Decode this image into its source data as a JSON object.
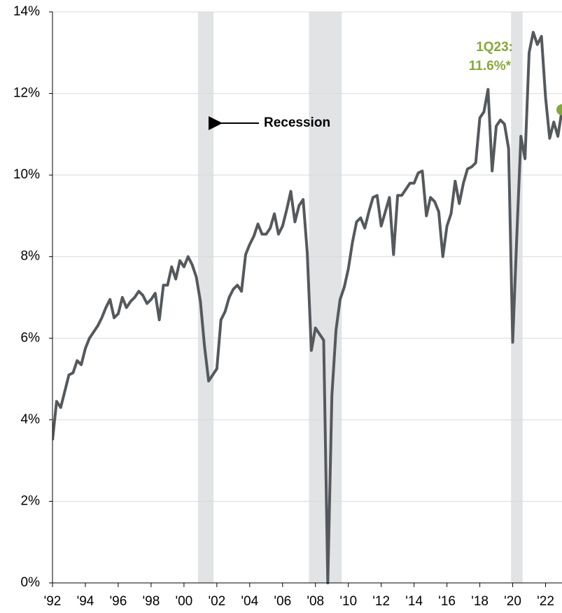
{
  "chart_data": {
    "type": "line",
    "x": [
      1992,
      1992.25,
      1992.5,
      1992.75,
      1993,
      1993.25,
      1993.5,
      1993.75,
      1994,
      1994.25,
      1994.5,
      1994.75,
      1995,
      1995.25,
      1995.5,
      1995.75,
      1996,
      1996.25,
      1996.5,
      1996.75,
      1997,
      1997.25,
      1997.5,
      1997.75,
      1998,
      1998.25,
      1998.5,
      1998.75,
      1999,
      1999.25,
      1999.5,
      1999.75,
      2000,
      2000.25,
      2000.5,
      2000.75,
      2001,
      2001.25,
      2001.5,
      2001.75,
      2002,
      2002.25,
      2002.5,
      2002.75,
      2003,
      2003.25,
      2003.5,
      2003.75,
      2004,
      2004.25,
      2004.5,
      2004.75,
      2005,
      2005.25,
      2005.5,
      2005.75,
      2006,
      2006.25,
      2006.5,
      2006.75,
      2007,
      2007.25,
      2007.5,
      2007.75,
      2008,
      2008.25,
      2008.5,
      2008.75,
      2009,
      2009.25,
      2009.5,
      2009.75,
      2010,
      2010.25,
      2010.5,
      2010.75,
      2011,
      2011.25,
      2011.5,
      2011.75,
      2012,
      2012.25,
      2012.5,
      2012.75,
      2013,
      2013.25,
      2013.5,
      2013.75,
      2014,
      2014.25,
      2014.5,
      2014.75,
      2015,
      2015.25,
      2015.5,
      2015.75,
      2016,
      2016.25,
      2016.5,
      2016.75,
      2017,
      2017.25,
      2017.5,
      2017.75,
      2018,
      2018.25,
      2018.5,
      2018.75,
      2019,
      2019.25,
      2019.5,
      2019.75,
      2020,
      2020.25,
      2020.5,
      2020.75,
      2021,
      2021.25,
      2021.5,
      2021.75,
      2022,
      2022.25,
      2022.5,
      2022.75,
      2023
    ],
    "series": [
      {
        "color": "#55595d",
        "values": [
          3.5,
          4.45,
          4.3,
          4.7,
          5.1,
          5.15,
          5.45,
          5.35,
          5.75,
          6.0,
          6.15,
          6.3,
          6.5,
          6.75,
          6.95,
          6.5,
          6.6,
          7.0,
          6.75,
          6.9,
          7.0,
          7.15,
          7.05,
          6.85,
          6.95,
          7.1,
          6.45,
          7.3,
          7.3,
          7.75,
          7.45,
          7.9,
          7.75,
          8.0,
          7.8,
          7.5,
          6.9,
          5.8,
          4.95,
          5.1,
          5.25,
          6.45,
          6.65,
          7.0,
          7.2,
          7.3,
          7.15,
          8.05,
          8.3,
          8.5,
          8.8,
          8.55,
          8.55,
          8.7,
          9.05,
          8.55,
          8.75,
          9.15,
          9.6,
          8.85,
          9.25,
          9.4,
          8.1,
          5.7,
          6.25,
          6.1,
          5.95,
          0.0,
          4.6,
          6.2,
          6.95,
          7.25,
          7.7,
          8.35,
          8.85,
          8.95,
          8.7,
          9.1,
          9.45,
          9.5,
          8.75,
          9.1,
          9.45,
          8.05,
          9.5,
          9.5,
          9.65,
          9.8,
          9.8,
          10.05,
          10.1,
          9.0,
          9.45,
          9.35,
          9.1,
          8.0,
          8.75,
          9.05,
          9.85,
          9.3,
          9.8,
          10.15,
          10.2,
          10.3,
          11.4,
          11.55,
          12.1,
          10.1,
          11.2,
          11.35,
          11.25,
          10.65,
          5.9,
          8.5,
          10.95,
          10.4,
          13.0,
          13.5,
          13.2,
          13.4,
          11.9,
          10.9,
          11.3,
          10.95,
          11.6
        ]
      }
    ],
    "highlight_color": "#85a83a",
    "last_label": [
      "1Q23:",
      "11.6%*"
    ],
    "recessions": [
      [
        2000.85,
        2001.8
      ],
      [
        2007.6,
        2009.6
      ],
      [
        2019.9,
        2020.6
      ]
    ],
    "recession_color": "#e2e3e5",
    "recession_label": "Recession",
    "xlim": [
      1992,
      2023
    ],
    "xticks": [
      {
        "value": 1992,
        "label": "'92"
      },
      {
        "value": 1994,
        "label": "'94"
      },
      {
        "value": 1996,
        "label": "'96"
      },
      {
        "value": 1998,
        "label": "'98"
      },
      {
        "value": 2000,
        "label": "'00"
      },
      {
        "value": 2002,
        "label": "'02"
      },
      {
        "value": 2004,
        "label": "'04"
      },
      {
        "value": 2006,
        "label": "'06"
      },
      {
        "value": 2008,
        "label": "'08"
      },
      {
        "value": 2010,
        "label": "'10"
      },
      {
        "value": 2012,
        "label": "'12"
      },
      {
        "value": 2014,
        "label": "'14"
      },
      {
        "value": 2016,
        "label": "'16"
      },
      {
        "value": 2018,
        "label": "'18"
      },
      {
        "value": 2020,
        "label": "'20"
      },
      {
        "value": 2022,
        "label": "'22"
      }
    ],
    "ylim": [
      0,
      14
    ],
    "yticks": [
      {
        "value": 0,
        "label": "0%"
      },
      {
        "value": 2,
        "label": "2%"
      },
      {
        "value": 4,
        "label": "4%"
      },
      {
        "value": 6,
        "label": "6%"
      },
      {
        "value": 8,
        "label": "8%"
      },
      {
        "value": 10,
        "label": "10%"
      },
      {
        "value": 12,
        "label": "12%"
      },
      {
        "value": 14,
        "label": "14%"
      }
    ],
    "grid": true
  }
}
